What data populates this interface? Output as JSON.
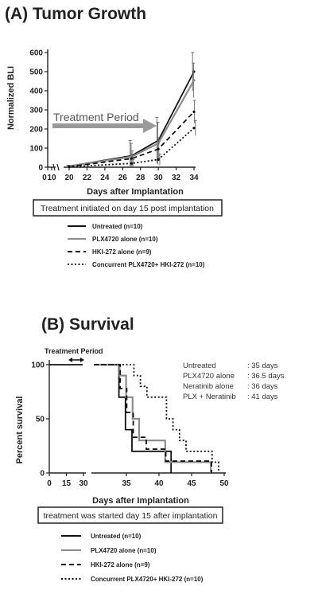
{
  "panel_a": {
    "title": "(A) Tumor Growth",
    "note": "Treatment initiated on day 15 post implantation",
    "annotation": "Treatment Period"
  },
  "panel_b": {
    "title": "(B) Survival",
    "note": "treatment was started day 15 after implantation",
    "annotation": "Treatment Period",
    "medians": [
      {
        "label": "Untreated",
        "value": ": 35 days"
      },
      {
        "label": "PLX4720 alone",
        "value": ": 36.5 days"
      },
      {
        "label": "Neratinib alone",
        "value": ": 36 days"
      },
      {
        "label": "PLX + Neratinib",
        "value": ": 41 days"
      }
    ]
  },
  "chart_data": [
    {
      "type": "line",
      "title": "(A) Tumor Growth",
      "xlabel": "Days after Implantation",
      "ylabel": "Normalized BLI",
      "xticks": [
        "0",
        "10",
        "20",
        "22",
        "24",
        "26",
        "28",
        "30",
        "32",
        "34"
      ],
      "yticks": [
        0,
        100,
        200,
        300,
        400,
        500,
        600
      ],
      "ylim": [
        0,
        600
      ],
      "x": [
        20,
        27,
        30,
        34
      ],
      "series": [
        {
          "name": "Untreated (n=10)",
          "style": "solid",
          "color": "#111111",
          "values": [
            5,
            60,
            140,
            500
          ],
          "err": [
            5,
            80,
            120,
            100
          ]
        },
        {
          "name": "PLX4720 alone (n=10)",
          "style": "solid",
          "color": "#8c8c8c",
          "values": [
            5,
            55,
            125,
            455
          ],
          "err": [
            5,
            70,
            110,
            90
          ]
        },
        {
          "name": "HKI-272 alone (n=9)",
          "style": "dashed",
          "color": "#111111",
          "values": [
            3,
            45,
            95,
            290
          ],
          "err": [
            3,
            40,
            60,
            60
          ]
        },
        {
          "name": "Concurrent PLX4720+ HKI-272 (n=10)",
          "style": "dotted",
          "color": "#111111",
          "values": [
            2,
            20,
            40,
            205
          ],
          "err": [
            2,
            20,
            30,
            40
          ]
        }
      ],
      "legend": "bottom"
    },
    {
      "type": "line",
      "title": "(B) Survival",
      "xlabel": "Days after Implantation",
      "ylabel": "Percent survival",
      "xticks": [
        "0",
        "15",
        "30",
        "35",
        "40",
        "45",
        "50"
      ],
      "yticks": [
        0,
        50,
        100
      ],
      "ylim": [
        0,
        100
      ],
      "series": [
        {
          "name": "Untreated (n=10)",
          "style": "solid",
          "color": "#111111",
          "steps": [
            [
              31,
              100
            ],
            [
              34,
              100
            ],
            [
              34,
              70
            ],
            [
              35,
              70
            ],
            [
              35,
              40
            ],
            [
              36,
              40
            ],
            [
              36,
              20
            ],
            [
              42,
              20
            ],
            [
              42,
              0
            ]
          ]
        },
        {
          "name": "PLX4720 alone (n=10)",
          "style": "solid",
          "color": "#8c8c8c",
          "steps": [
            [
              31,
              100
            ],
            [
              34,
              100
            ],
            [
              34,
              90
            ],
            [
              35,
              90
            ],
            [
              35,
              70
            ],
            [
              36,
              70
            ],
            [
              36,
              50
            ],
            [
              37,
              50
            ],
            [
              37,
              30
            ],
            [
              41,
              30
            ],
            [
              41,
              10
            ],
            [
              48,
              10
            ],
            [
              48,
              0
            ]
          ]
        },
        {
          "name": "HKI-272 alone (n=9)",
          "style": "dashed",
          "color": "#111111",
          "steps": [
            [
              31,
              100
            ],
            [
              34,
              100
            ],
            [
              34,
              78
            ],
            [
              35,
              78
            ],
            [
              35,
              56
            ],
            [
              36,
              56
            ],
            [
              36,
              33
            ],
            [
              38,
              33
            ],
            [
              38,
              22
            ],
            [
              41,
              22
            ],
            [
              41,
              11
            ],
            [
              48,
              11
            ],
            [
              48,
              0
            ]
          ]
        },
        {
          "name": "Concurrent PLX4720+ HKI-272 (n=10)",
          "style": "dotted",
          "color": "#111111",
          "steps": [
            [
              31,
              100
            ],
            [
              36,
              100
            ],
            [
              36,
              90
            ],
            [
              37,
              90
            ],
            [
              37,
              80
            ],
            [
              38,
              80
            ],
            [
              38,
              70
            ],
            [
              41,
              70
            ],
            [
              41,
              50
            ],
            [
              42,
              50
            ],
            [
              42,
              40
            ],
            [
              43,
              40
            ],
            [
              43,
              30
            ],
            [
              44,
              30
            ],
            [
              44,
              20
            ],
            [
              48,
              20
            ],
            [
              48,
              10
            ],
            [
              49,
              10
            ],
            [
              49,
              0
            ]
          ]
        }
      ],
      "legend": "bottom"
    }
  ]
}
